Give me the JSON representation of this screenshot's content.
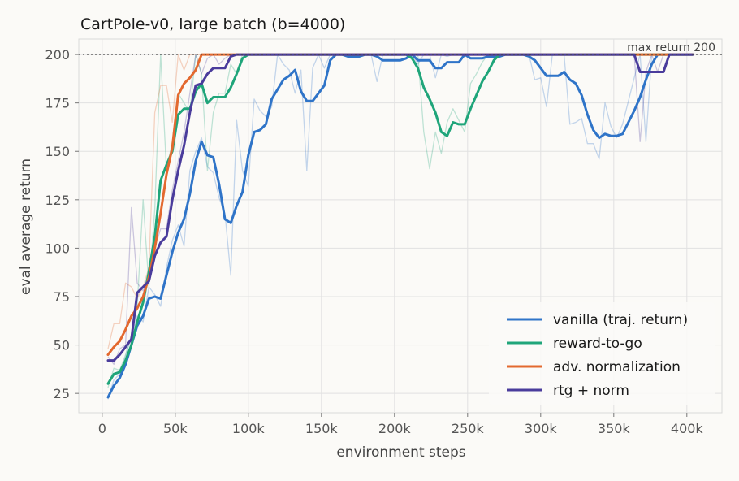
{
  "chart_data": {
    "type": "line",
    "title": "CartPole-v0, large batch (b=4000)",
    "xlabel": "environment steps",
    "ylabel": "eval average return",
    "xlim": [
      -16000,
      424000
    ],
    "ylim": [
      15,
      208
    ],
    "xticks": [
      0,
      50000,
      100000,
      150000,
      200000,
      250000,
      300000,
      350000,
      400000
    ],
    "xtick_labels": [
      "0",
      "50k",
      "100k",
      "150k",
      "200k",
      "250k",
      "300k",
      "350k",
      "400k"
    ],
    "yticks": [
      25,
      50,
      75,
      100,
      125,
      150,
      175,
      200
    ],
    "ytick_labels": [
      "25",
      "50",
      "75",
      "100",
      "125",
      "150",
      "175",
      "200"
    ],
    "grid": true,
    "legend_position": "lower-right",
    "reference_line": {
      "y": 200,
      "label": "max return 200"
    },
    "series": [
      {
        "name": "vanilla (traj. return)",
        "color": "#2f74c8",
        "x": [
          4000,
          8000,
          12000,
          16000,
          20000,
          24000,
          28000,
          32000,
          36000,
          40000,
          44000,
          48000,
          52000,
          56000,
          60000,
          64000,
          68000,
          72000,
          76000,
          80000,
          84000,
          88000,
          92000,
          96000,
          100000,
          104000,
          108000,
          112000,
          116000,
          120000,
          124000,
          128000,
          132000,
          136000,
          140000,
          144000,
          148000,
          152000,
          156000,
          160000,
          164000,
          168000,
          172000,
          176000,
          180000,
          184000,
          188000,
          192000,
          196000,
          200000,
          204000,
          208000,
          212000,
          216000,
          220000,
          224000,
          228000,
          232000,
          236000,
          240000,
          244000,
          248000,
          252000,
          256000,
          260000,
          264000,
          268000,
          272000,
          276000,
          280000,
          284000,
          288000,
          292000,
          296000,
          300000,
          304000,
          308000,
          312000,
          316000,
          320000,
          324000,
          328000,
          332000,
          336000,
          340000,
          344000,
          348000,
          352000,
          356000,
          360000,
          364000,
          368000,
          372000,
          376000,
          380000,
          384000,
          388000,
          392000,
          396000,
          400000,
          404000
        ],
        "smoothed": [
          23,
          29,
          33,
          40,
          50,
          60,
          65,
          74,
          75,
          74,
          86,
          98,
          108,
          115,
          128,
          145,
          155,
          148,
          147,
          133,
          115,
          113,
          122,
          129,
          148,
          160,
          161,
          164,
          177,
          182,
          187,
          189,
          192,
          181,
          176,
          176,
          180,
          184,
          197,
          200,
          200,
          199,
          199,
          199,
          200,
          200,
          199,
          197,
          197,
          197,
          197,
          198,
          200,
          197,
          197,
          197,
          193,
          193,
          196,
          196,
          196,
          200,
          198,
          198,
          198,
          199,
          199,
          199,
          200,
          200,
          200,
          200,
          199,
          197,
          193,
          189,
          189,
          189,
          191,
          187,
          185,
          179,
          169,
          161,
          157,
          159,
          158,
          158,
          159,
          165,
          171,
          178,
          187,
          195,
          200,
          200,
          200,
          200,
          200,
          200,
          200
        ],
        "raw": [
          22,
          32,
          35,
          44,
          55,
          65,
          62,
          80,
          76,
          70,
          90,
          104,
          112,
          101,
          140,
          150,
          157,
          142,
          139,
          126,
          118,
          86,
          166,
          140,
          132,
          177,
          171,
          168,
          173,
          200,
          195,
          192,
          180,
          192,
          140,
          193,
          200,
          193,
          200,
          200,
          200,
          200,
          200,
          200,
          200,
          200,
          186,
          200,
          200,
          200,
          200,
          200,
          200,
          195,
          200,
          200,
          188,
          200,
          199,
          200,
          200,
          200,
          200,
          200,
          200,
          200,
          200,
          200,
          200,
          200,
          200,
          200,
          200,
          187,
          188,
          173,
          200,
          200,
          200,
          164,
          165,
          167,
          154,
          154,
          146,
          175,
          163,
          157,
          164,
          176,
          188,
          200,
          155,
          200,
          200,
          200,
          200,
          200,
          200,
          200,
          200
        ]
      },
      {
        "name": "reward-to-go",
        "color": "#1fa57a",
        "x": [
          4000,
          8000,
          12000,
          16000,
          20000,
          24000,
          28000,
          32000,
          36000,
          40000,
          44000,
          48000,
          52000,
          56000,
          60000,
          64000,
          68000,
          72000,
          76000,
          80000,
          84000,
          88000,
          92000,
          96000,
          100000,
          110000,
          120000,
          140000,
          160000,
          180000,
          200000,
          208000,
          212000,
          216000,
          220000,
          224000,
          228000,
          232000,
          236000,
          240000,
          244000,
          248000,
          252000,
          256000,
          260000,
          264000,
          268000,
          272000,
          276000,
          280000,
          290000,
          300000,
          320000,
          340000,
          360000,
          380000,
          400000,
          404000
        ],
        "smoothed": [
          30,
          35,
          36,
          42,
          50,
          62,
          72,
          88,
          106,
          135,
          143,
          150,
          169,
          172,
          172,
          181,
          185,
          175,
          178,
          178,
          178,
          183,
          190,
          198,
          200,
          200,
          200,
          200,
          200,
          200,
          200,
          200,
          198,
          193,
          183,
          177,
          170,
          160,
          158,
          165,
          164,
          164,
          172,
          179,
          186,
          191,
          197,
          200,
          200,
          200,
          200,
          200,
          200,
          200,
          200,
          200,
          200,
          200
        ],
        "raw": [
          28,
          38,
          37,
          45,
          55,
          70,
          125,
          80,
          120,
          200,
          140,
          155,
          180,
          175,
          170,
          200,
          190,
          140,
          170,
          180,
          180,
          195,
          190,
          200,
          200,
          200,
          200,
          200,
          200,
          200,
          200,
          200,
          200,
          200,
          160,
          141,
          160,
          149,
          165,
          172,
          166,
          160,
          185,
          190,
          196,
          200,
          200,
          200,
          200,
          200,
          200,
          200,
          200,
          200,
          200,
          200,
          200,
          200
        ]
      },
      {
        "name": "adv. normalization",
        "color": "#e3692f",
        "x": [
          4000,
          8000,
          12000,
          16000,
          20000,
          24000,
          28000,
          32000,
          36000,
          40000,
          44000,
          48000,
          52000,
          56000,
          60000,
          64000,
          68000,
          72000,
          76000,
          80000,
          84000,
          88000,
          92000,
          96000,
          100000,
          140000,
          180000,
          220000,
          260000,
          300000,
          340000,
          380000,
          404000
        ],
        "smoothed": [
          45,
          49,
          52,
          58,
          65,
          69,
          75,
          85,
          100,
          118,
          138,
          152,
          179,
          185,
          188,
          192,
          200,
          200,
          200,
          200,
          200,
          200,
          200,
          200,
          200,
          200,
          200,
          200,
          200,
          200,
          200,
          200,
          200
        ],
        "raw": [
          48,
          61,
          61,
          82,
          80,
          74,
          80,
          90,
          170,
          184,
          184,
          165,
          200,
          192,
          200,
          200,
          200,
          200,
          200,
          200,
          200,
          200,
          200,
          200,
          200,
          200,
          200,
          200,
          200,
          200,
          200,
          200,
          200
        ]
      },
      {
        "name": "rtg + norm",
        "color": "#4a3c9c",
        "x": [
          4000,
          8000,
          12000,
          16000,
          20000,
          24000,
          28000,
          32000,
          36000,
          40000,
          44000,
          48000,
          52000,
          56000,
          60000,
          64000,
          68000,
          72000,
          76000,
          80000,
          84000,
          88000,
          92000,
          96000,
          100000,
          140000,
          180000,
          220000,
          260000,
          300000,
          340000,
          360000,
          364000,
          368000,
          372000,
          376000,
          380000,
          384000,
          388000,
          392000,
          396000,
          400000,
          404000
        ],
        "smoothed": [
          42,
          42,
          45,
          49,
          53,
          77,
          80,
          83,
          96,
          103,
          106,
          125,
          140,
          153,
          170,
          184,
          185,
          190,
          193,
          193,
          193,
          199,
          200,
          200,
          200,
          200,
          200,
          200,
          200,
          200,
          200,
          200,
          200,
          191,
          191,
          191,
          191,
          191,
          200,
          200,
          200,
          200,
          200
        ],
        "raw": [
          44,
          40,
          48,
          50,
          121,
          82,
          78,
          88,
          100,
          110,
          110,
          130,
          145,
          160,
          180,
          200,
          190,
          198,
          200,
          195,
          198,
          200,
          200,
          200,
          200,
          200,
          200,
          200,
          200,
          200,
          200,
          200,
          200,
          155,
          191,
          200,
          191,
          200,
          200,
          200,
          200,
          200,
          200
        ]
      }
    ]
  }
}
